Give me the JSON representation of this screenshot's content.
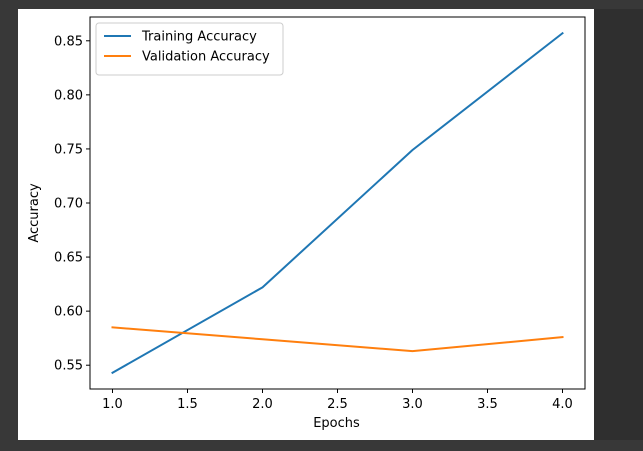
{
  "colors": {
    "window_background": "#383838",
    "figure_background": "#ffffff",
    "axes_border": "#000000"
  },
  "chart_data": {
    "type": "line",
    "title": "",
    "xlabel": "Epochs",
    "ylabel": "Accuracy",
    "xlim": [
      0.85,
      4.15
    ],
    "ylim": [
      0.528,
      0.872
    ],
    "xticks": [
      1.0,
      1.5,
      2.0,
      2.5,
      3.0,
      3.5,
      4.0
    ],
    "xtick_labels": [
      "1.0",
      "1.5",
      "2.0",
      "2.5",
      "3.0",
      "3.5",
      "4.0"
    ],
    "yticks": [
      0.55,
      0.6,
      0.65,
      0.7,
      0.75,
      0.8,
      0.85
    ],
    "ytick_labels": [
      "0.55",
      "0.60",
      "0.65",
      "0.70",
      "0.75",
      "0.80",
      "0.85"
    ],
    "grid": false,
    "legend_position": "top-left",
    "series": [
      {
        "name": "Training Accuracy",
        "color": "#1f77b4",
        "x": [
          1,
          2,
          3,
          4
        ],
        "y": [
          0.543,
          0.622,
          0.749,
          0.857
        ]
      },
      {
        "name": "Validation Accuracy",
        "color": "#ff7f0e",
        "x": [
          1,
          2,
          3,
          4
        ],
        "y": [
          0.585,
          0.574,
          0.563,
          0.576
        ]
      }
    ]
  }
}
